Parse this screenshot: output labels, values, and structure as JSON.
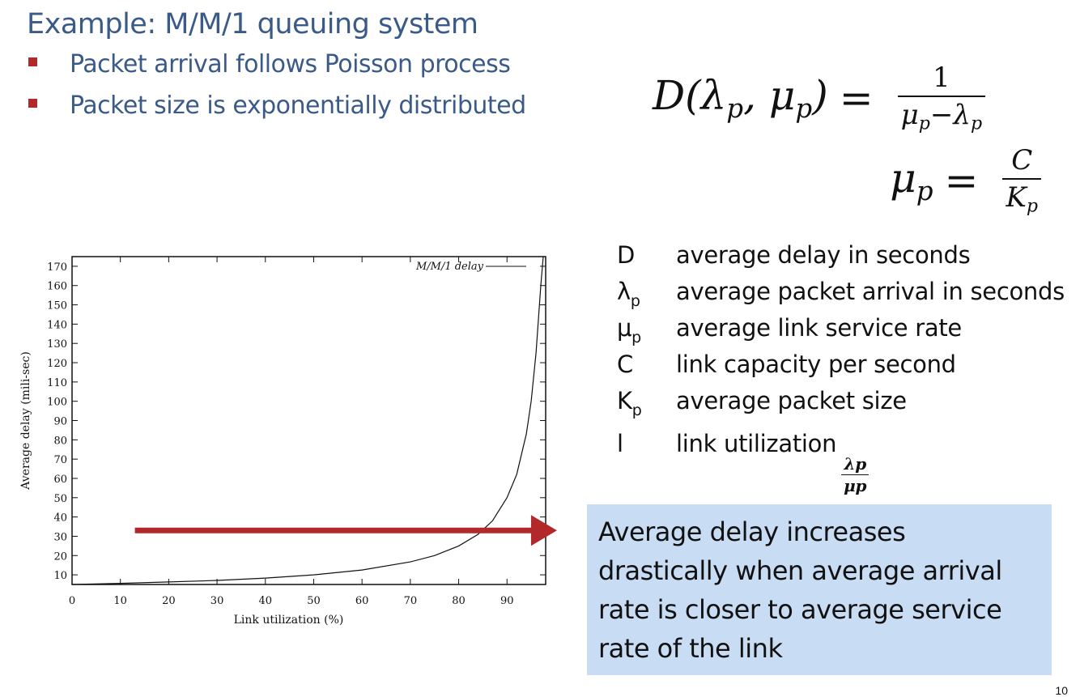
{
  "slide": {
    "title": "Example: M/M/1 queuing system",
    "bullets": [
      "Packet arrival follows Poisson process",
      "Packet size is exponentially distributed"
    ],
    "page_number": "10",
    "accent_color": "#b3282a",
    "title_color": "#3a5a88"
  },
  "formulas": {
    "delay": {
      "lhs": "D(λ",
      "lhs_sub1": "p",
      "lhs_mid": ", μ",
      "lhs_sub2": "p",
      "lhs_end": ")",
      "eq": "=",
      "num": "1",
      "den_a": "μ",
      "den_a_sub": "p",
      "den_minus": "−λ",
      "den_b_sub": "p"
    },
    "service": {
      "lhs": "μ",
      "lhs_sub": "p",
      "eq": "=",
      "num": "C",
      "den": "K",
      "den_sub": "p"
    }
  },
  "legend": [
    {
      "symbol": "D",
      "sub": "",
      "desc": "average delay in seconds"
    },
    {
      "symbol": "λ",
      "sub": "p",
      "desc": "average packet arrival in seconds"
    },
    {
      "symbol": "μ",
      "sub": "p",
      "desc": "average link service rate"
    },
    {
      "symbol": "C",
      "sub": "",
      "desc": "link capacity per second"
    },
    {
      "symbol": "K",
      "sub": "p",
      "desc": "average packet size"
    },
    {
      "symbol": "l",
      "sub": "",
      "desc": "link utilization",
      "frac_num": "λp",
      "frac_den": "μp"
    }
  ],
  "callout": {
    "text": "Average delay increases drastically when average arrival rate is closer to average service rate of the link",
    "background": "#c8dcf4"
  },
  "chart_data": {
    "type": "line",
    "title": "",
    "xlabel": "Link  utilization (%)",
    "ylabel": "Average delay (mili-sec)",
    "xlim": [
      0,
      98
    ],
    "ylim": [
      5,
      175
    ],
    "x_ticks": [
      0,
      10,
      20,
      30,
      40,
      50,
      60,
      70,
      80,
      90
    ],
    "y_ticks": [
      10,
      20,
      30,
      40,
      50,
      60,
      70,
      80,
      90,
      100,
      110,
      120,
      130,
      140,
      150,
      160,
      170
    ],
    "legend": "M/M/1 delay",
    "series": [
      {
        "name": "M/M/1 delay",
        "x": [
          0,
          10,
          20,
          30,
          40,
          50,
          60,
          70,
          75,
          80,
          84,
          87,
          90,
          92,
          94,
          95,
          96,
          97,
          97.5
        ],
        "y": [
          5,
          5.6,
          6.3,
          7.1,
          8.3,
          10,
          12.5,
          16.7,
          20,
          25,
          31,
          38,
          50,
          62,
          83,
          100,
          125,
          160,
          175
        ]
      }
    ],
    "annotation": {
      "type": "arrow",
      "y": 33,
      "x_start": 13,
      "x_end": 100,
      "color": "#b3282a"
    }
  }
}
